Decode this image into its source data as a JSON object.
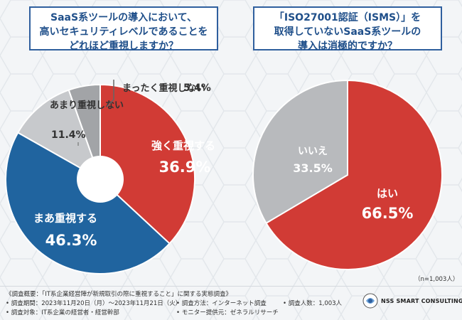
{
  "questions": {
    "left": [
      "SaaS系ツールの導入において、",
      "高いセキュリティレベルであることを",
      "どれほど重視しますか？"
    ],
    "right": [
      "「ISO27001認証（ISMS）」を",
      "取得していないSaaS系ツールの",
      "導入は消極的ですか？"
    ]
  },
  "chart_data": [
    {
      "type": "pie",
      "title": "SaaS系ツールの導入において、高いセキュリティレベルであることをどれほど重視しますか？",
      "slices": [
        {
          "label": "強く重視する",
          "value": 36.9,
          "value_text": "36.9%",
          "color": "#d13b35"
        },
        {
          "label": "まあ重視する",
          "value": 46.3,
          "value_text": "46.3%",
          "color": "#20649f"
        },
        {
          "label": "あまり重視しない",
          "value": 11.4,
          "value_text": "11.4%",
          "color": "#c7c9cc"
        },
        {
          "label": "まったく重視しない",
          "value": 5.4,
          "value_text": "5.4%",
          "color": "#a2a4a7"
        }
      ],
      "donut": true
    },
    {
      "type": "pie",
      "title": "「ISO27001認証（ISMS）」を取得していないSaaS系ツールの導入は消極的ですか？",
      "slices": [
        {
          "label": "はい",
          "value": 66.5,
          "value_text": "66.5%",
          "color": "#d13b35"
        },
        {
          "label": "いいえ",
          "value": 33.5,
          "value_text": "33.5%",
          "color": "#b8babd"
        }
      ],
      "donut": false
    }
  ],
  "footer": {
    "sample_note": "（n=1,003人）",
    "lines": [
      "《調査概要：「IT系企業経営陣が新規取引の際に重視すること」に関する実態調査》",
      "• 調査期間：2023年11月20日（月）〜2023年11月21日（火）",
      "• 調査対象：IT系企業の経営者・経営幹部",
      "• 調査方法：インターネット調査",
      "• モニター提供元：ゼネラルリサーチ",
      "• 調査人数：1,003人"
    ],
    "logo_text": "NSS SMART CONSULTING"
  }
}
